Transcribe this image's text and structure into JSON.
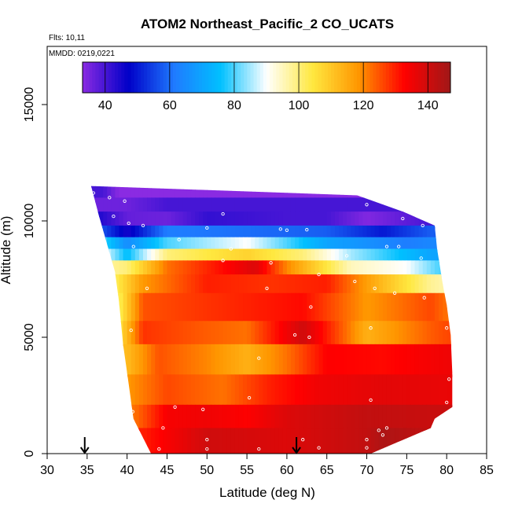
{
  "chart_data": {
    "type": "heatmap",
    "title": "ATOM2 Northeast_Pacific_2 CO_UCATS",
    "flights_label": "Flts: 10,11",
    "mmdd_label": "MMDD: 0219,0221",
    "xlabel": "Latitude (deg N)",
    "ylabel": "Altitude (m)",
    "xlim": [
      30,
      85
    ],
    "ylim": [
      0,
      17500
    ],
    "xticks": [
      30,
      35,
      40,
      45,
      50,
      55,
      60,
      65,
      70,
      75,
      80,
      85
    ],
    "yticks": [
      0,
      5000,
      10000,
      15000
    ],
    "colorbar": {
      "min": 33,
      "max": 147,
      "ticks": [
        40,
        60,
        80,
        100,
        120,
        140
      ],
      "colors": [
        "#8a2be2",
        "#0000c8",
        "#1f7bff",
        "#00c0ff",
        "#ffffff",
        "#ffe840",
        "#ff9600",
        "#ff0000",
        "#a01818"
      ]
    },
    "arrows_lat": [
      34.7,
      61.2
    ],
    "curtain_left_edge": [
      [
        35.5,
        11500
      ],
      [
        36.5,
        10200
      ],
      [
        37.5,
        9000
      ],
      [
        38.5,
        7800
      ],
      [
        39.0,
        6500
      ],
      [
        39.5,
        4700
      ],
      [
        40.2,
        3000
      ],
      [
        40.8,
        1500
      ],
      [
        43.0,
        0
      ]
    ],
    "curtain_right_edge": [
      [
        68.8,
        11100
      ],
      [
        74.5,
        10400
      ],
      [
        78.5,
        9800
      ],
      [
        78.8,
        8800
      ],
      [
        79.5,
        7300
      ],
      [
        80.0,
        6400
      ],
      [
        80.5,
        5100
      ],
      [
        80.7,
        3500
      ],
      [
        80.7,
        2000
      ],
      [
        78.5,
        1500
      ],
      [
        78.0,
        1100
      ],
      [
        70.5,
        0
      ]
    ],
    "layers": [
      {
        "z0": 11000,
        "z1": 11500,
        "vals": [
          [
            35,
            40
          ],
          [
            37,
            40
          ],
          [
            39,
            33
          ]
        ]
      },
      {
        "z0": 10200,
        "z1": 11000,
        "vals": [
          [
            36,
            36
          ],
          [
            40,
            36
          ],
          [
            45,
            40
          ],
          [
            50,
            40
          ],
          [
            55,
            40
          ],
          [
            60,
            40
          ],
          [
            65,
            40
          ],
          [
            70,
            40
          ]
        ]
      },
      {
        "z0": 9700,
        "z1": 10400,
        "vals": [
          [
            36,
            45
          ],
          [
            40,
            37
          ],
          [
            45,
            36
          ],
          [
            50,
            42
          ],
          [
            60,
            40
          ],
          [
            65,
            40
          ],
          [
            70,
            34
          ],
          [
            78,
            40
          ]
        ]
      },
      {
        "z0": 9200,
        "z1": 9800,
        "vals": [
          [
            36,
            60
          ],
          [
            40,
            45
          ],
          [
            45,
            62
          ],
          [
            55,
            60
          ],
          [
            65,
            58
          ],
          [
            72,
            50
          ],
          [
            78,
            58
          ]
        ]
      },
      {
        "z0": 8700,
        "z1": 9300,
        "vals": [
          [
            37,
            80
          ],
          [
            40,
            65
          ],
          [
            45,
            80
          ],
          [
            50,
            85
          ],
          [
            55,
            90
          ],
          [
            65,
            70
          ],
          [
            75,
            62
          ],
          [
            78,
            64
          ]
        ]
      },
      {
        "z0": 8200,
        "z1": 8800,
        "vals": [
          [
            37,
            90
          ],
          [
            40,
            75
          ],
          [
            45,
            100
          ],
          [
            55,
            108
          ],
          [
            62,
            100
          ],
          [
            68,
            85
          ],
          [
            78,
            70
          ]
        ]
      },
      {
        "z0": 7600,
        "z1": 8300,
        "vals": [
          [
            38,
            98
          ],
          [
            40,
            100
          ],
          [
            45,
            122
          ],
          [
            52,
            132
          ],
          [
            56,
            138
          ],
          [
            60,
            120
          ],
          [
            68,
            95
          ],
          [
            75,
            90
          ],
          [
            79,
            80
          ]
        ]
      },
      {
        "z0": 6800,
        "z1": 7700,
        "vals": [
          [
            38,
            100
          ],
          [
            42,
            118
          ],
          [
            50,
            130
          ],
          [
            58,
            128
          ],
          [
            65,
            130
          ],
          [
            72,
            112
          ],
          [
            78,
            98
          ],
          [
            80,
            96
          ]
        ]
      },
      {
        "z0": 5600,
        "z1": 6900,
        "vals": [
          [
            39,
            102
          ],
          [
            42,
            125
          ],
          [
            50,
            128
          ],
          [
            56,
            130
          ],
          [
            62,
            132
          ],
          [
            70,
            118
          ],
          [
            78,
            126
          ],
          [
            80,
            122
          ]
        ]
      },
      {
        "z0": 4600,
        "z1": 5700,
        "vals": [
          [
            39,
            105
          ],
          [
            42,
            128
          ],
          [
            50,
            124
          ],
          [
            55,
            122
          ],
          [
            62,
            140
          ],
          [
            70,
            114
          ],
          [
            78,
            124
          ],
          [
            80,
            126
          ]
        ]
      },
      {
        "z0": 3300,
        "z1": 4700,
        "vals": [
          [
            40,
            112
          ],
          [
            44,
            125
          ],
          [
            50,
            120
          ],
          [
            55,
            114
          ],
          [
            60,
            122
          ],
          [
            65,
            133
          ],
          [
            72,
            132
          ],
          [
            80,
            135
          ]
        ]
      },
      {
        "z0": 2000,
        "z1": 3400,
        "vals": [
          [
            40,
            118
          ],
          [
            45,
            126
          ],
          [
            52,
            122
          ],
          [
            58,
            130
          ],
          [
            64,
            135
          ],
          [
            72,
            137
          ],
          [
            80,
            136
          ]
        ]
      },
      {
        "z0": 1000,
        "z1": 2100,
        "vals": [
          [
            41,
            122
          ],
          [
            45,
            134
          ],
          [
            50,
            135
          ],
          [
            55,
            133
          ],
          [
            60,
            138
          ],
          [
            65,
            140
          ],
          [
            70,
            142
          ],
          [
            78,
            141
          ]
        ]
      },
      {
        "z0": 0,
        "z1": 1100,
        "vals": [
          [
            42,
            130
          ],
          [
            50,
            140
          ],
          [
            60,
            138
          ],
          [
            65,
            140
          ],
          [
            70,
            142
          ],
          [
            72,
            145
          ],
          [
            78,
            142
          ]
        ]
      }
    ],
    "sample_points": [
      [
        35.8,
        11200
      ],
      [
        37.8,
        11000
      ],
      [
        39.7,
        10850
      ],
      [
        70.0,
        10700
      ],
      [
        52.0,
        10300
      ],
      [
        74.5,
        10100
      ],
      [
        38.3,
        10200
      ],
      [
        40.2,
        9900
      ],
      [
        42.0,
        9800
      ],
      [
        50.0,
        9700
      ],
      [
        59.2,
        9650
      ],
      [
        60.0,
        9600
      ],
      [
        62.5,
        9620
      ],
      [
        77.0,
        9800
      ],
      [
        46.5,
        9200
      ],
      [
        40.8,
        8900
      ],
      [
        53.0,
        8800
      ],
      [
        72.5,
        8900
      ],
      [
        74.0,
        8900
      ],
      [
        76.8,
        8400
      ],
      [
        67.5,
        8500
      ],
      [
        52.0,
        8300
      ],
      [
        58.0,
        8200
      ],
      [
        64.0,
        7700
      ],
      [
        68.5,
        7400
      ],
      [
        42.5,
        7100
      ],
      [
        57.5,
        7100
      ],
      [
        71.0,
        7100
      ],
      [
        73.5,
        6900
      ],
      [
        77.2,
        6700
      ],
      [
        63.0,
        6300
      ],
      [
        40.5,
        5300
      ],
      [
        70.5,
        5400
      ],
      [
        80.0,
        5400
      ],
      [
        61.0,
        5100
      ],
      [
        62.8,
        5000
      ],
      [
        56.5,
        4100
      ],
      [
        80.3,
        3200
      ],
      [
        55.3,
        2400
      ],
      [
        70.5,
        2300
      ],
      [
        80.0,
        2200
      ],
      [
        46.0,
        2000
      ],
      [
        49.5,
        1900
      ],
      [
        40.7,
        1800
      ],
      [
        44.5,
        1100
      ],
      [
        72.5,
        1100
      ],
      [
        71.5,
        1000
      ],
      [
        41.0,
        700
      ],
      [
        50.0,
        600
      ],
      [
        62.0,
        600
      ],
      [
        70.0,
        600
      ],
      [
        72.0,
        800
      ],
      [
        44.0,
        200
      ],
      [
        50.0,
        200
      ],
      [
        56.5,
        200
      ],
      [
        64.0,
        250
      ],
      [
        70.0,
        250
      ]
    ]
  }
}
